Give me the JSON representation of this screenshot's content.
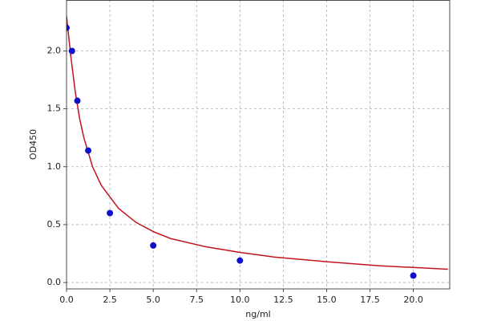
{
  "chart_data": {
    "type": "scatter",
    "xlabel": "ng/ml",
    "ylabel": "OD450",
    "xlim": [
      0,
      22.1
    ],
    "ylim": [
      -0.055,
      2.44
    ],
    "xticks": [
      {
        "value": 0,
        "label": "0.0"
      },
      {
        "value": 2.5,
        "label": "2.5"
      },
      {
        "value": 5,
        "label": "5.0"
      },
      {
        "value": 7.5,
        "label": "7.5"
      },
      {
        "value": 10,
        "label": "10.0"
      },
      {
        "value": 12.5,
        "label": "12.5"
      },
      {
        "value": 15,
        "label": "15.0"
      },
      {
        "value": 17.5,
        "label": "17.5"
      },
      {
        "value": 20,
        "label": "20.0"
      }
    ],
    "yticks": [
      {
        "value": 0,
        "label": "0.0"
      },
      {
        "value": 0.5,
        "label": "0.5"
      },
      {
        "value": 1,
        "label": "1.0"
      },
      {
        "value": 1.5,
        "label": "1.5"
      },
      {
        "value": 2,
        "label": "2.0"
      }
    ],
    "grid": true,
    "series": [
      {
        "mode": "line",
        "color": "#c0141c",
        "x": [
          0,
          0.25,
          0.5,
          0.75,
          1,
          1.5,
          2,
          3,
          4,
          5,
          6,
          8,
          10,
          12,
          15,
          18,
          22
        ],
        "values": [
          2.3,
          1.95,
          1.65,
          1.42,
          1.25,
          1.0,
          0.84,
          0.64,
          0.52,
          0.44,
          0.38,
          0.31,
          0.26,
          0.22,
          0.18,
          0.145,
          0.115
        ]
      },
      {
        "mode": "markers",
        "color": "#1010c8",
        "x": [
          0,
          0.3125,
          0.625,
          1.25,
          2.5,
          5,
          10,
          20
        ],
        "values": [
          2.2,
          2.0,
          1.57,
          1.14,
          0.6,
          0.32,
          0.19,
          0.06
        ]
      }
    ]
  }
}
